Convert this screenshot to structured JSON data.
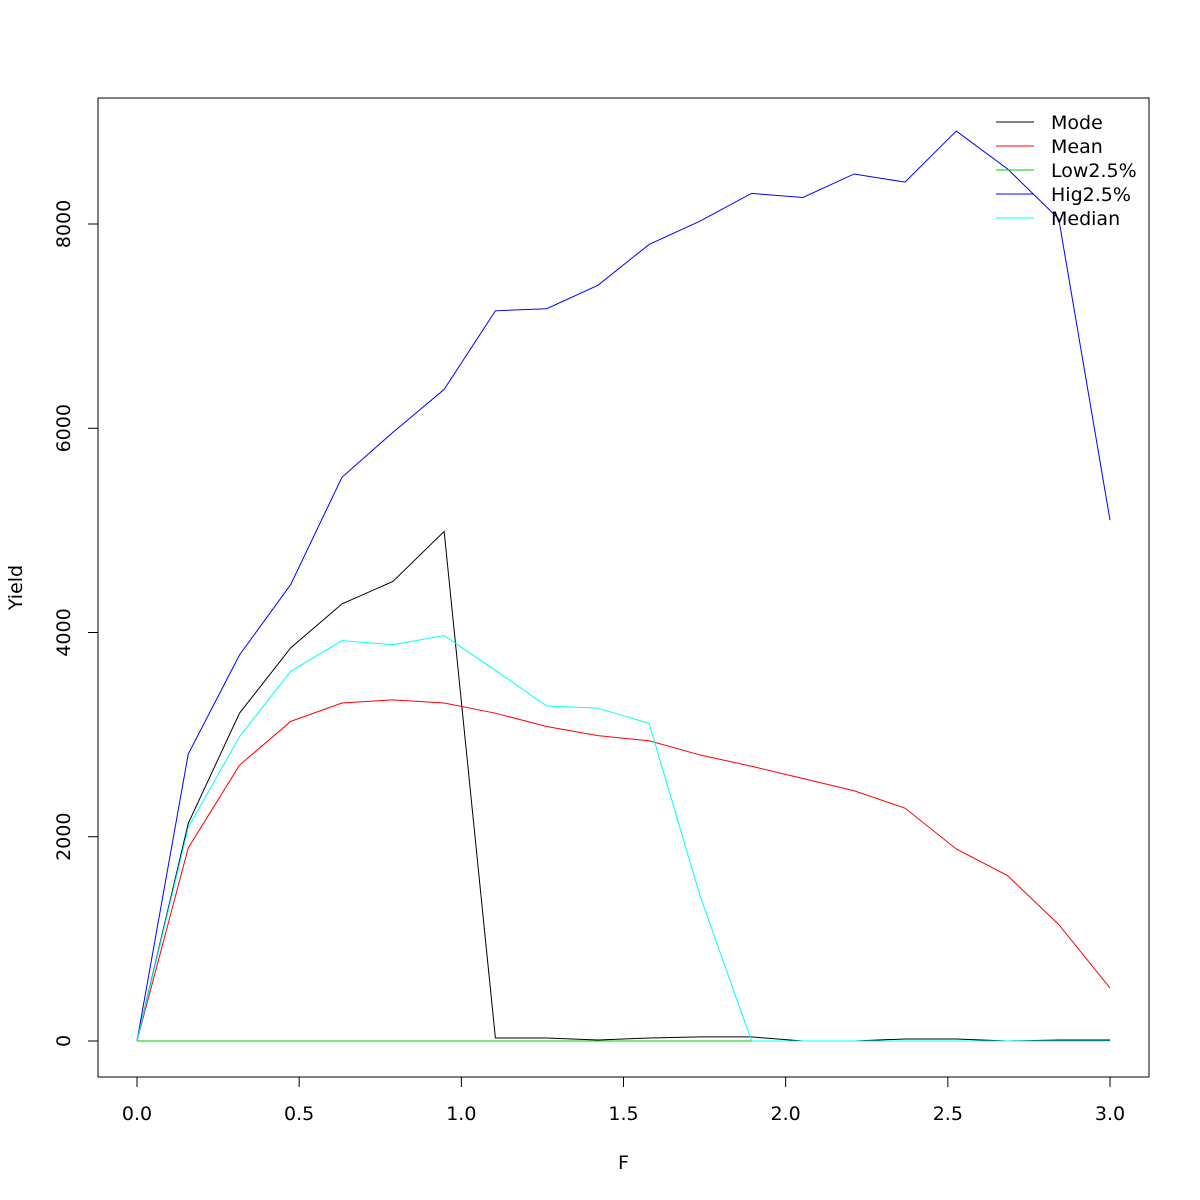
{
  "chart_data": {
    "type": "line",
    "title": "",
    "xlabel": "F",
    "ylabel": "Yield",
    "xlim": [
      0,
      3
    ],
    "ylim": [
      -350,
      9200
    ],
    "x_ticks": [
      0,
      0.5,
      1,
      1.5,
      2,
      2.5,
      3
    ],
    "x_tick_labels": [
      "0.0",
      "0.5",
      "1.0",
      "1.5",
      "2.0",
      "2.5",
      "3.0"
    ],
    "y_ticks": [
      0,
      2000,
      4000,
      6000,
      8000
    ],
    "y_tick_labels": [
      "0",
      "2000",
      "4000",
      "6000",
      "8000"
    ],
    "grid": false,
    "legend_position": "top-right",
    "x": [
      0,
      0.158,
      0.316,
      0.474,
      0.632,
      0.789,
      0.947,
      1.105,
      1.263,
      1.421,
      1.579,
      1.737,
      1.895,
      2.053,
      2.211,
      2.368,
      2.526,
      2.684,
      2.842,
      3.0
    ],
    "series": [
      {
        "name": "Mode",
        "color": "#000000",
        "values": [
          0,
          2130,
          3210,
          3850,
          4280,
          4500,
          4990,
          30,
          30,
          10,
          30,
          40,
          40,
          0,
          0,
          20,
          20,
          0,
          10,
          10
        ]
      },
      {
        "name": "Mean",
        "color": "#ff0000",
        "values": [
          0,
          1890,
          2700,
          3130,
          3310,
          3340,
          3310,
          3210,
          3080,
          2990,
          2940,
          2800,
          2690,
          2570,
          2450,
          2280,
          1880,
          1620,
          1140,
          520
        ]
      },
      {
        "name": "Low2.5%",
        "color": "#00cd00",
        "values": [
          0,
          0,
          0,
          0,
          0,
          0,
          0,
          0,
          0,
          0,
          0,
          0,
          0,
          0,
          0,
          0,
          0,
          0,
          0,
          0
        ]
      },
      {
        "name": "Hig2.5%",
        "color": "#0000ff",
        "values": [
          0,
          2810,
          3780,
          4470,
          5520,
          5960,
          6380,
          7150,
          7170,
          7400,
          7800,
          8030,
          8300,
          8260,
          8490,
          8410,
          8910,
          8540,
          8050,
          5100
        ]
      },
      {
        "name": "Median",
        "color": "#00ffff",
        "values": [
          0,
          2090,
          2980,
          3620,
          3920,
          3880,
          3970,
          3630,
          3280,
          3260,
          3110,
          1410,
          0,
          0,
          0,
          0,
          0,
          0,
          0,
          0
        ]
      }
    ]
  }
}
